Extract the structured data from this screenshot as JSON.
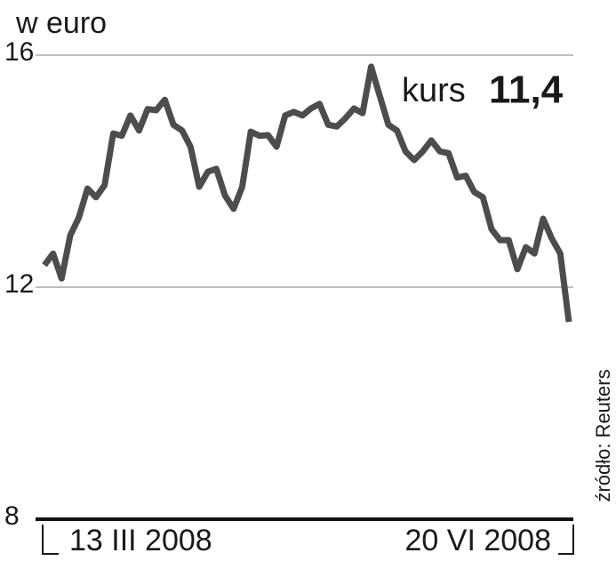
{
  "chart_data": {
    "type": "line",
    "title": "w euro",
    "annotation": {
      "label": "kurs",
      "value": "11,4"
    },
    "source": "źródło: Reuters",
    "categories": [
      "13 III 2008",
      null,
      null,
      null,
      null,
      null,
      null,
      null,
      null,
      null,
      null,
      null,
      null,
      null,
      null,
      null,
      null,
      null,
      null,
      null,
      null,
      null,
      null,
      null,
      null,
      null,
      null,
      null,
      null,
      null,
      null,
      null,
      null,
      null,
      null,
      null,
      null,
      null,
      null,
      null,
      null,
      null,
      null,
      null,
      null,
      null,
      null,
      null,
      null,
      null,
      null,
      null,
      null,
      null,
      null,
      null,
      null,
      null,
      null,
      null,
      null,
      "20 VI 2008"
    ],
    "series": [
      {
        "name": "kurs",
        "color": "#4d4d4d",
        "values": [
          12.38,
          12.58,
          12.15,
          12.89,
          13.2,
          13.7,
          13.55,
          13.76,
          14.65,
          14.61,
          14.96,
          14.7,
          15.07,
          15.05,
          15.23,
          14.8,
          14.7,
          14.42,
          13.73,
          13.99,
          14.04,
          13.58,
          13.35,
          13.73,
          14.68,
          14.61,
          14.62,
          14.42,
          14.96,
          15.02,
          14.96,
          15.08,
          15.16,
          14.8,
          14.77,
          14.91,
          15.08,
          15.0,
          15.8,
          15.3,
          14.8,
          14.7,
          14.34,
          14.19,
          14.34,
          14.53,
          14.34,
          14.31,
          13.89,
          13.92,
          13.64,
          13.55,
          13.0,
          12.81,
          12.81,
          12.31,
          12.69,
          12.58,
          13.18,
          12.84,
          12.58,
          11.4
        ]
      }
    ],
    "ylim": [
      8,
      16
    ],
    "yticks": [
      8,
      12,
      16
    ],
    "grid": true
  }
}
